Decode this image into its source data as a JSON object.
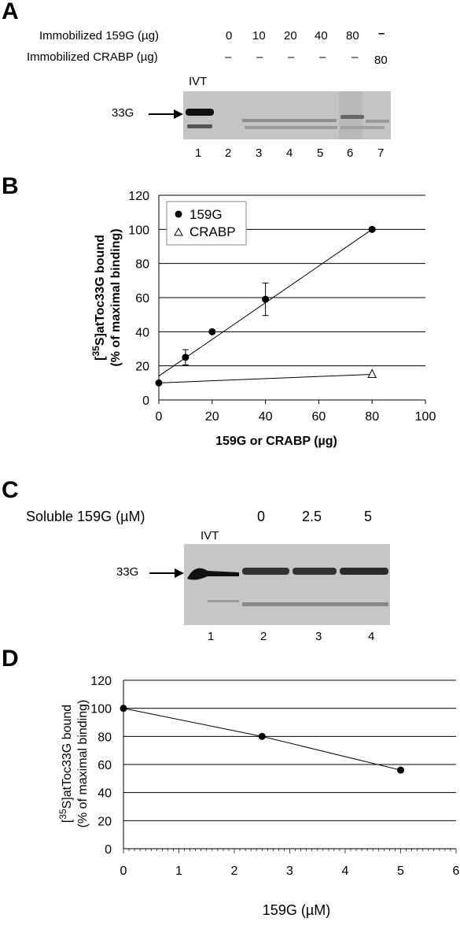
{
  "panelA": {
    "letter": "A",
    "row1_label": "Immobilized 159G (µg)",
    "row2_label": "Immobilized CRABP (µg)",
    "row1_values": [
      "0",
      "10",
      "20",
      "40",
      "80",
      "–"
    ],
    "row2_values": [
      "–",
      "–",
      "–",
      "–",
      "–",
      "80"
    ],
    "ivt_label": "IVT",
    "band_label": "33G",
    "lanes": [
      "1",
      "2",
      "3",
      "4",
      "5",
      "6",
      "7"
    ]
  },
  "panelC": {
    "letter": "C",
    "soluble_label": "Soluble 159G (µM)",
    "conc_values": [
      "0",
      "2.5",
      "5"
    ],
    "ivt_label": "IVT",
    "band_label": "33G",
    "lanes": [
      "1",
      "2",
      "3",
      "4"
    ]
  },
  "chart_data": [
    {
      "panel": "B",
      "type": "scatter",
      "ylabel_line1": "[35S]atToc33G bound",
      "ylabel_line2": "(% of maximal binding)",
      "xlabel": "159G or CRABP (µg)",
      "xlim": [
        0,
        100
      ],
      "ylim": [
        0,
        120
      ],
      "xticks": [
        "0",
        "20",
        "40",
        "60",
        "80",
        "100"
      ],
      "yticks": [
        "0",
        "20",
        "40",
        "60",
        "80",
        "100",
        "120"
      ],
      "grid": "horizontal",
      "legend_position": "top-left",
      "series": [
        {
          "name": "159G",
          "marker": "filled-circle",
          "x": [
            0,
            10,
            20,
            40,
            80
          ],
          "y": [
            10,
            25,
            40,
            59,
            100
          ],
          "error": [
            0,
            4.5,
            0,
            9.5,
            0
          ],
          "trendline": [
            [
              0,
              14
            ],
            [
              80,
              100
            ]
          ]
        },
        {
          "name": "CRABP",
          "marker": "open-triangle",
          "x": [
            0,
            80
          ],
          "y": [
            10,
            15
          ],
          "error": [
            0,
            0
          ],
          "trendline": [
            [
              0,
              10
            ],
            [
              80,
              15
            ]
          ]
        }
      ]
    },
    {
      "panel": "D",
      "type": "line",
      "ylabel_line1": "[35S]atToc33G bound",
      "ylabel_line2": "(% of maximal binding)",
      "xlabel": "159G (µM)",
      "xlim": [
        0,
        6
      ],
      "ylim": [
        0,
        120
      ],
      "xticks": [
        "0",
        "1",
        "2",
        "3",
        "4",
        "5",
        "6"
      ],
      "yticks": [
        "0",
        "20",
        "40",
        "60",
        "80",
        "100",
        "120"
      ],
      "grid": "horizontal",
      "series": [
        {
          "name": "",
          "marker": "filled-circle",
          "x": [
            0,
            2.5,
            5
          ],
          "y": [
            100,
            80,
            56
          ]
        }
      ]
    }
  ]
}
